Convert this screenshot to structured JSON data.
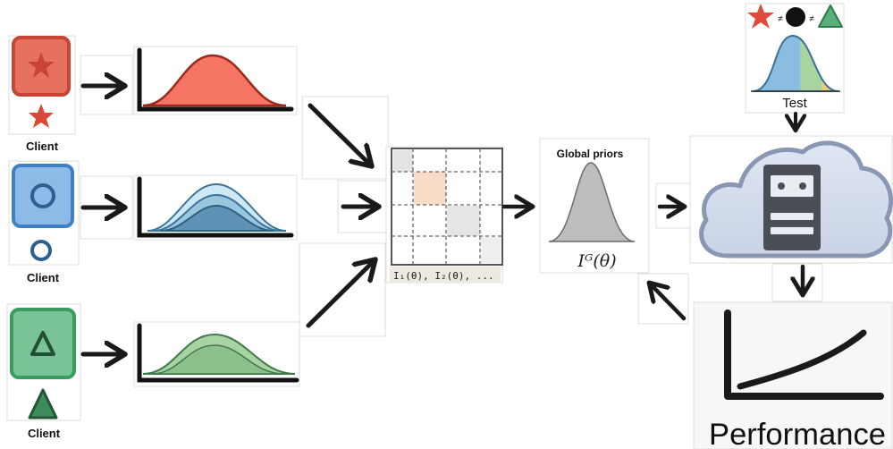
{
  "clients": [
    {
      "label": "Client",
      "shape": "star",
      "color": "#e05a48"
    },
    {
      "label": "Client",
      "shape": "circle",
      "color": "#4f8fd6"
    },
    {
      "label": "Client",
      "shape": "triangle",
      "color": "#3d9b62"
    }
  ],
  "matrix": {
    "caption": "I₁(θ), I₂(θ), ..."
  },
  "global_priors": {
    "title": "Global priors",
    "formula": "Iᴳ(θ)"
  },
  "test": {
    "label": "Test",
    "neq_1": "≠",
    "neq_2": "≠"
  },
  "performance": {
    "label": "Performance"
  },
  "colors": {
    "red": "#e85d4e",
    "blue": "#4f8fd6",
    "green": "#48a26b",
    "gray": "#b8b8b8",
    "arrow": "#1a1a1a"
  }
}
